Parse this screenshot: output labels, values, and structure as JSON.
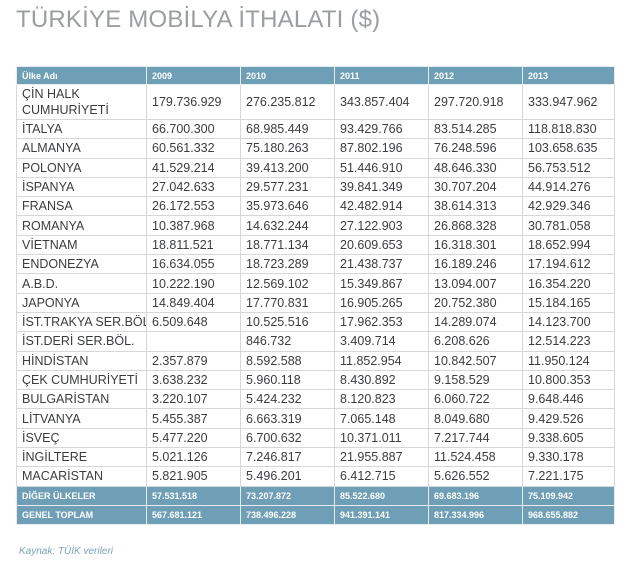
{
  "title": "TÜRKİYE MOBİLYA İTHALATI ($)",
  "table": {
    "headers": [
      "Ülke Adı",
      "2009",
      "2010",
      "2011",
      "2012",
      "2013"
    ],
    "rows": [
      [
        "ÇİN HALK CUMHURİYETİ",
        "179.736.929",
        "276.235.812",
        "343.857.404",
        "297.720.918",
        "333.947.962"
      ],
      [
        "İTALYA",
        "66.700.300",
        "68.985.449",
        "93.429.766",
        "83.514.285",
        "118.818.830"
      ],
      [
        "ALMANYA",
        "60.561.332",
        "75.180.263",
        "87.802.196",
        "76.248.596",
        "103.658.635"
      ],
      [
        "POLONYA",
        "41.529.214",
        "39.413.200",
        "51.446.910",
        "48.646.330",
        "56.753.512"
      ],
      [
        "İSPANYA",
        "27.042.633",
        "29.577.231",
        "39.841.349",
        "30.707.204",
        "44.914.276"
      ],
      [
        "FRANSA",
        "26.172.553",
        "35.973.646",
        "42.482.914",
        "38.614.313",
        "42.929.346"
      ],
      [
        "ROMANYA",
        "10.387.968",
        "14.632.244",
        "27.122.903",
        "26.868.328",
        "30.781.058"
      ],
      [
        "VİETNAM",
        "18.811.521",
        "18.771.134",
        "20.609.653",
        "16.318.301",
        "18.652.994"
      ],
      [
        "ENDONEZYA",
        "16.634.055",
        "18.723.289",
        "21.438.737",
        "16.189.246",
        "17.194.612"
      ],
      [
        "A.B.D.",
        "10.222.190",
        "12.569.102",
        "15.349.867",
        "13.094.007",
        "16.354.220"
      ],
      [
        "JAPONYA",
        "14.849.404",
        "17.770.831",
        "16.905.265",
        "20.752.380",
        "15.184.165"
      ],
      [
        "İST.TRAKYA SER.BÖL.",
        "6.509.648",
        "10.525.516",
        "17.962.353",
        "14.289.074",
        "14.123.700"
      ],
      [
        "İST.DERİ SER.BÖL.",
        "",
        "846.732",
        "3.409.714",
        "6.208.626",
        "12.514.223"
      ],
      [
        "HİNDİSTAN",
        "2.357.879",
        "8.592.588",
        "11.852.954",
        "10.842.507",
        "11.950.124"
      ],
      [
        "ÇEK CUMHURİYETİ",
        "3.638.232",
        "5.960.118",
        "8.430.892",
        "9.158.529",
        "10.800.353"
      ],
      [
        "BULGARİSTAN",
        "3.220.107",
        "5.424.232",
        "8.120.823",
        "6.060.722",
        "9.648.446"
      ],
      [
        "LİTVANYA",
        "5.455.387",
        "6.663.319",
        "7.065.148",
        "8.049.680",
        "9.429.526"
      ],
      [
        "İSVEÇ",
        "5.477.220",
        "6.700.632",
        "10.371.011",
        "7.217.744",
        "9.338.605"
      ],
      [
        "İNGİLTERE",
        "5.021.126",
        "7.246.817",
        "21.955.887",
        "11.524.458",
        "9.330.178"
      ],
      [
        "MACARİSTAN",
        "5.821.905",
        "5.496.201",
        "6.412.715",
        "5.626.552",
        "7.221.175"
      ]
    ],
    "totals": [
      [
        "DİĞER ÜLKELER",
        "57.531.518",
        "73.207.872",
        "85.522.680",
        "69.683.196",
        "75.109.942"
      ],
      [
        "GENEL TOPLAM",
        "567.681.121",
        "738.496.228",
        "941.391.141",
        "817.334.996",
        "968.655.882"
      ]
    ]
  },
  "source": "Kaynak: TÜİK verileri",
  "colors": {
    "header_bg": "#6e9fb6",
    "title": "#9a9ea2",
    "source": "#7aa3bb"
  }
}
